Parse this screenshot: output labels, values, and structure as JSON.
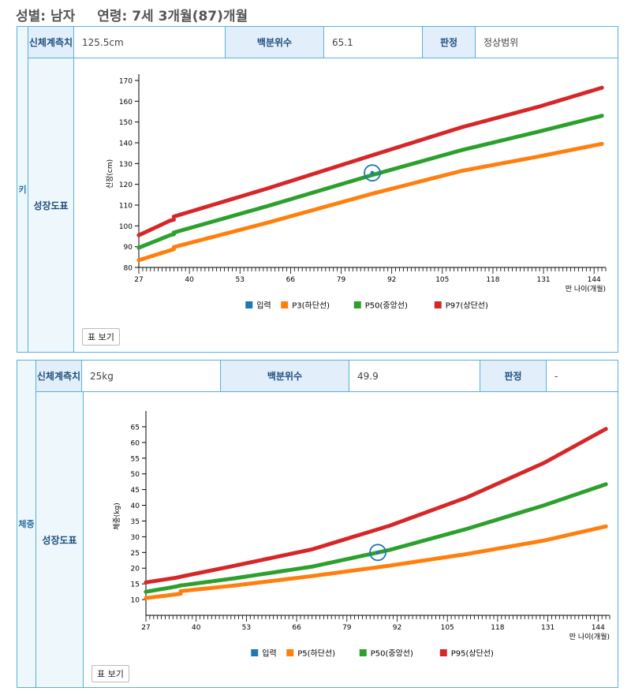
{
  "header": {
    "sex": "성별: 남자",
    "age": "연령: 7세 3개월(87)개월"
  },
  "height_panel": {
    "side_label": "키",
    "measure_label": "신체계측치",
    "measure_value": "125.5cm",
    "percentile_label": "백분위수",
    "percentile_value": "65.1",
    "judgement_label": "판정",
    "judgement_value": "정상범위",
    "chart_label": "성장도표",
    "table_button": "표 보기"
  },
  "weight_panel": {
    "side_label": "체중",
    "measure_label": "신체계측치",
    "measure_value": "25kg",
    "percentile_label": "백분위수",
    "percentile_value": "49.9",
    "judgement_label": "판정",
    "judgement_value": "-",
    "chart_label": "성장도표",
    "table_button": "표 보기"
  },
  "chart_data": [
    {
      "type": "scatter",
      "ylabel": "신장(cm)",
      "xlabel": "만 나이(개월)",
      "xlim": [
        27,
        147
      ],
      "ylim": [
        80,
        170
      ],
      "xticks": [
        27,
        40,
        53,
        66,
        79,
        92,
        105,
        118,
        131,
        144
      ],
      "yticks": [
        80,
        90,
        100,
        110,
        120,
        130,
        140,
        150,
        160,
        170
      ],
      "legend_position": "bottom",
      "input_point": {
        "x": 87,
        "y": 125.5
      },
      "series": [
        {
          "name": "입력",
          "color": "#1f77b4",
          "x": [
            87
          ],
          "y": [
            125.5
          ]
        },
        {
          "name": "P3(하단선)",
          "color": "#ff7f0e",
          "x": [
            27,
            35,
            36,
            36,
            60,
            87,
            110,
            130,
            146
          ],
          "y": [
            83.5,
            88.2,
            88.8,
            89.8,
            101.5,
            115.5,
            126.5,
            133.5,
            139.5
          ]
        },
        {
          "name": "P50(중앙선)",
          "color": "#2ca02c",
          "x": [
            27,
            35,
            36,
            36,
            60,
            87,
            110,
            130,
            146
          ],
          "y": [
            89.5,
            95.5,
            96.0,
            96.8,
            109.5,
            124.5,
            136.5,
            145.5,
            153
          ]
        },
        {
          "name": "P97(상단선)",
          "color": "#d62728",
          "x": [
            27,
            35,
            36,
            36,
            60,
            87,
            110,
            130,
            146
          ],
          "y": [
            95.5,
            102.5,
            103.0,
            104.5,
            118.0,
            134.0,
            147.5,
            157.5,
            166.5
          ]
        }
      ]
    },
    {
      "type": "scatter",
      "ylabel": "체중(kg)",
      "xlabel": "만 나이(개월)",
      "xlim": [
        27,
        147
      ],
      "ylim": [
        5,
        68
      ],
      "xticks": [
        27,
        40,
        53,
        66,
        79,
        92,
        105,
        118,
        131,
        144
      ],
      "yticks": [
        10,
        15,
        20,
        25,
        30,
        35,
        40,
        45,
        50,
        55,
        60,
        65
      ],
      "legend_position": "bottom",
      "input_point": {
        "x": 87,
        "y": 25
      },
      "series": [
        {
          "name": "입력",
          "color": "#1f77b4",
          "x": [
            87
          ],
          "y": [
            25
          ]
        },
        {
          "name": "P5(하단선)",
          "color": "#ff7f0e",
          "x": [
            27,
            35,
            36,
            36,
            50,
            70,
            90,
            110,
            130,
            146
          ],
          "y": [
            10.5,
            11.7,
            11.9,
            12.7,
            14.5,
            17.5,
            20.8,
            24.5,
            28.8,
            33.3
          ]
        },
        {
          "name": "P50(중앙선)",
          "color": "#2ca02c",
          "x": [
            27,
            35,
            36,
            50,
            70,
            90,
            110,
            130,
            146
          ],
          "y": [
            12.5,
            14.2,
            14.5,
            16.8,
            20.5,
            25.8,
            32.5,
            40.0,
            46.7
          ]
        },
        {
          "name": "P95(상단선)",
          "color": "#d62728",
          "x": [
            27,
            35,
            36,
            50,
            70,
            90,
            110,
            130,
            146
          ],
          "y": [
            15.5,
            17.0,
            17.3,
            20.8,
            26.0,
            33.5,
            42.5,
            53.5,
            64.3
          ]
        }
      ]
    }
  ]
}
